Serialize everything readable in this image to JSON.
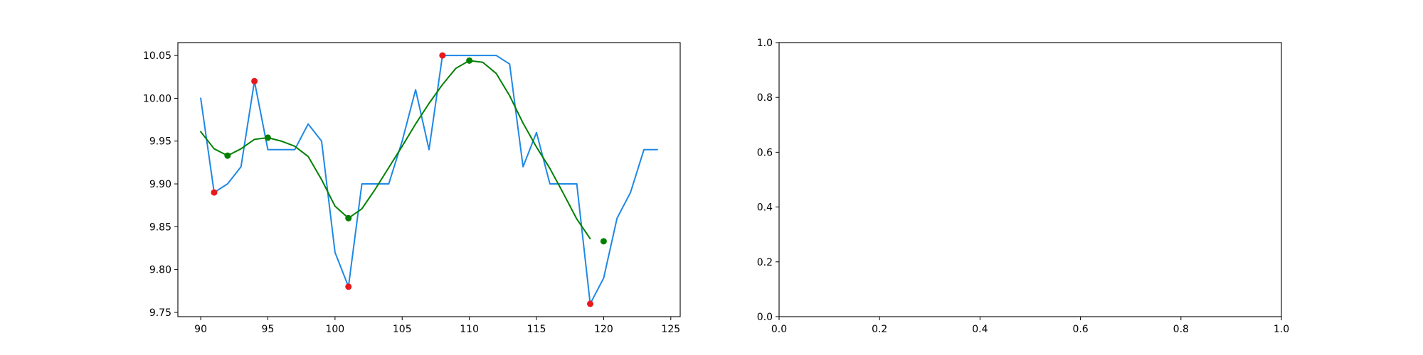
{
  "chart_data": [
    {
      "type": "line",
      "title": "",
      "xlabel": "",
      "ylabel": "",
      "xlim": [
        88.3,
        125.7
      ],
      "ylim": [
        9.745,
        10.065
      ],
      "xticks": [
        90,
        95,
        100,
        105,
        110,
        115,
        120,
        125
      ],
      "xtick_labels": [
        "90",
        "95",
        "100",
        "105",
        "110",
        "115",
        "120",
        "125"
      ],
      "yticks": [
        9.75,
        9.8,
        9.85,
        9.9,
        9.95,
        10.0,
        10.05
      ],
      "ytick_labels": [
        "9.75",
        "9.80",
        "9.85",
        "9.90",
        "9.95",
        "10.00",
        "10.05"
      ],
      "grid": false,
      "series": [
        {
          "kind": "line",
          "color": "#1e88e5",
          "x": [
            90,
            91,
            92,
            93,
            94,
            95,
            96,
            97,
            98,
            99,
            100,
            101,
            102,
            103,
            104,
            105,
            106,
            107,
            108,
            109,
            110,
            111,
            112,
            113,
            114,
            115,
            116,
            117,
            118,
            119,
            120,
            121,
            122,
            123,
            124
          ],
          "y": [
            10.0,
            9.89,
            9.9,
            9.92,
            10.02,
            9.94,
            9.94,
            9.94,
            9.97,
            9.95,
            9.82,
            9.78,
            9.9,
            9.9,
            9.9,
            9.95,
            10.01,
            9.94,
            10.05,
            10.05,
            10.05,
            10.05,
            10.05,
            10.04,
            9.92,
            9.96,
            9.9,
            9.9,
            9.9,
            9.76,
            9.79,
            9.86,
            9.89,
            9.94,
            9.94
          ]
        },
        {
          "kind": "line",
          "color": "#008000",
          "x": [
            90,
            91,
            92,
            93,
            94,
            95,
            96,
            97,
            98,
            99,
            100,
            101,
            102,
            103,
            104,
            105,
            106,
            107,
            108,
            109,
            110,
            111,
            112,
            113,
            114,
            115,
            116,
            117,
            118,
            119
          ],
          "y": [
            9.961,
            9.941,
            9.933,
            9.941,
            9.952,
            9.954,
            9.95,
            9.944,
            9.932,
            9.905,
            9.874,
            9.86,
            9.871,
            9.894,
            9.919,
            9.944,
            9.97,
            9.994,
            10.016,
            10.035,
            10.044,
            10.042,
            10.029,
            10.003,
            9.971,
            9.943,
            9.918,
            9.889,
            9.859,
            9.836
          ]
        },
        {
          "kind": "scatter",
          "color": "#e8191d",
          "x": [
            91,
            94,
            101,
            108,
            119
          ],
          "y": [
            9.89,
            10.02,
            9.78,
            10.05,
            9.76
          ]
        },
        {
          "kind": "scatter",
          "color": "#008000",
          "x": [
            92,
            95,
            101,
            110,
            120
          ],
          "y": [
            9.933,
            9.954,
            9.86,
            10.044,
            9.833
          ]
        }
      ]
    },
    {
      "type": "line",
      "title": "",
      "xlabel": "",
      "ylabel": "",
      "xlim": [
        0,
        1
      ],
      "ylim": [
        0,
        1
      ],
      "xticks": [
        0,
        0.2,
        0.4,
        0.6,
        0.8,
        1.0
      ],
      "xtick_labels": [
        "0.0",
        "0.2",
        "0.4",
        "0.6",
        "0.8",
        "1.0"
      ],
      "yticks": [
        0,
        0.2,
        0.4,
        0.6,
        0.8,
        1.0
      ],
      "ytick_labels": [
        "0.0",
        "0.2",
        "0.4",
        "0.6",
        "0.8",
        "1.0"
      ],
      "grid": false,
      "series": []
    }
  ]
}
